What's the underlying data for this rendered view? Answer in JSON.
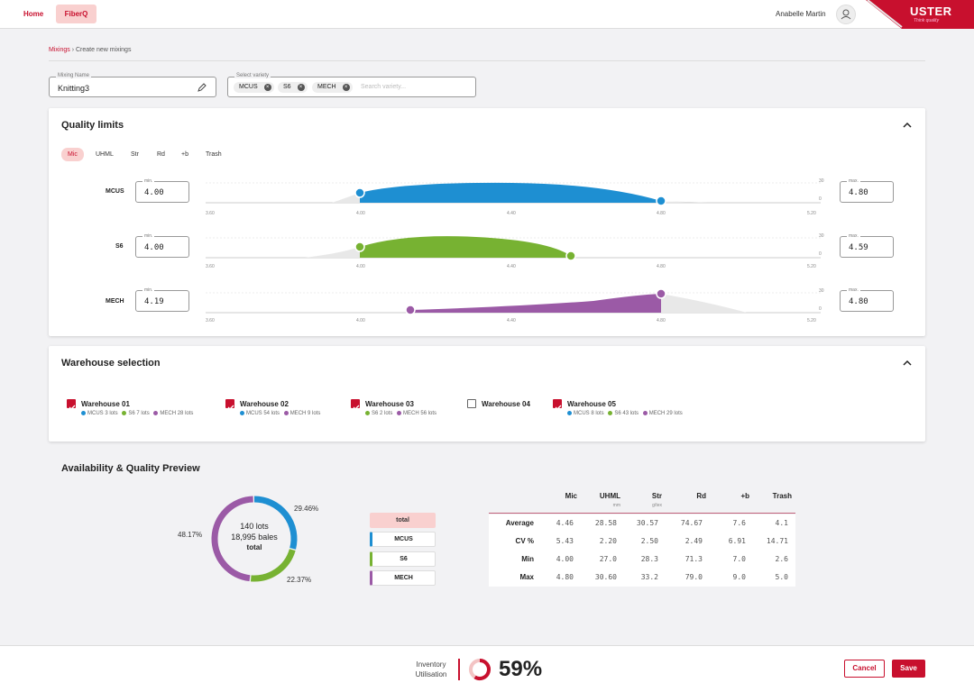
{
  "nav": {
    "home": "Home",
    "fiberq": "FiberQ",
    "user": "Anabelle Martin"
  },
  "brand": {
    "logo": "USTER",
    "tagline": "Think quality",
    "accent": "#c8102e"
  },
  "breadcrumb": {
    "parent": "Mixings",
    "separator": "›",
    "current": "Create new mixings"
  },
  "mixing_name": {
    "label": "Mixing Name",
    "value": "Knitting3"
  },
  "variety": {
    "label": "Select variety",
    "chips": [
      "MCUS",
      "S6",
      "MECH"
    ],
    "placeholder": "Search variety..."
  },
  "quality": {
    "title": "Quality limits",
    "tabs": [
      "Mic",
      "UHML",
      "Str",
      "Rd",
      "+b",
      "Trash"
    ],
    "active_tab": "Mic",
    "rows": [
      {
        "name": "MCUS",
        "min_label": "min.",
        "min": "4.00",
        "max_label": "max.",
        "max": "4.80",
        "ticks": [
          "3.60",
          "4.00",
          "4.40",
          "4.80",
          "5.20"
        ],
        "ymax": "30",
        "ymin": "0",
        "color": "#1e8fd2"
      },
      {
        "name": "S6",
        "min_label": "min.",
        "min": "4.00",
        "max_label": "max.",
        "max": "4.59",
        "ticks": [
          "3.60",
          "4.00",
          "4.40",
          "4.80",
          "5.20"
        ],
        "ymax": "30",
        "ymin": "0",
        "color": "#77b232"
      },
      {
        "name": "MECH",
        "min_label": "min.",
        "min": "4.19",
        "max_label": "max.",
        "max": "4.80",
        "ticks": [
          "3.60",
          "4.00",
          "4.40",
          "4.80",
          "5.20"
        ],
        "ymax": "30",
        "ymin": "0",
        "color": "#9b5aa6"
      }
    ]
  },
  "warehouse": {
    "title": "Warehouse selection",
    "items": [
      {
        "name": "Warehouse 01",
        "checked": true,
        "detail": [
          {
            "color": "#1e8fd2",
            "text": "MCUS 3 lots"
          },
          {
            "color": "#77b232",
            "text": "S6 7 lots"
          },
          {
            "color": "#9b5aa6",
            "text": "MECH 28 lots"
          }
        ]
      },
      {
        "name": "Warehouse 02",
        "checked": true,
        "detail": [
          {
            "color": "#1e8fd2",
            "text": "MCUS 54 lots"
          },
          {
            "color": "#9b5aa6",
            "text": "MECH 9 lots"
          }
        ]
      },
      {
        "name": "Warehouse 03",
        "checked": true,
        "detail": [
          {
            "color": "#77b232",
            "text": "S6 2 lots"
          },
          {
            "color": "#9b5aa6",
            "text": "MECH 56 lots"
          }
        ]
      },
      {
        "name": "Warehouse 04",
        "checked": false,
        "detail": []
      },
      {
        "name": "Warehouse 05",
        "checked": true,
        "detail": [
          {
            "color": "#1e8fd2",
            "text": "MCUS 8 lots"
          },
          {
            "color": "#77b232",
            "text": "S6 43 lots"
          },
          {
            "color": "#9b5aa6",
            "text": "MECH 29 lots"
          }
        ]
      }
    ]
  },
  "preview": {
    "title": "Availability & Quality Preview",
    "donut": {
      "lots": "140 lots",
      "bales": "18,995 bales",
      "label": "total",
      "slices": [
        {
          "pct": 29.46,
          "label": "29.46%",
          "color": "#1e8fd2"
        },
        {
          "pct": 22.37,
          "label": "22.37%",
          "color": "#77b232"
        },
        {
          "pct": 48.17,
          "label": "48.17%",
          "color": "#9b5aa6"
        }
      ]
    },
    "legend": [
      {
        "label": "total",
        "color": "#f9d0cf"
      },
      {
        "label": "MCUS",
        "color": "#1e8fd2"
      },
      {
        "label": "S6",
        "color": "#77b232"
      },
      {
        "label": "MECH",
        "color": "#9b5aa6"
      }
    ],
    "table": {
      "columns": [
        {
          "name": "Mic",
          "unit": ""
        },
        {
          "name": "UHML",
          "unit": "mm"
        },
        {
          "name": "Str",
          "unit": "g/tex"
        },
        {
          "name": "Rd",
          "unit": ""
        },
        {
          "name": "+b",
          "unit": ""
        },
        {
          "name": "Trash",
          "unit": ""
        }
      ],
      "rows": [
        {
          "label": "Average",
          "values": [
            "4.46",
            "28.58",
            "30.57",
            "74.67",
            "7.6",
            "4.1"
          ]
        },
        {
          "label": "CV %",
          "values": [
            "5.43",
            "2.20",
            "2.50",
            "2.49",
            "6.91",
            "14.71"
          ]
        },
        {
          "label": "Min",
          "values": [
            "4.00",
            "27.0",
            "28.3",
            "71.3",
            "7.0",
            "2.6"
          ]
        },
        {
          "label": "Max",
          "values": [
            "4.80",
            "30.60",
            "33.2",
            "79.0",
            "9.0",
            "5.0"
          ]
        }
      ]
    }
  },
  "footer": {
    "inventory_label": "Inventory Utilisation",
    "inventory_value": 59,
    "inventory_text": "59%",
    "cancel": "Cancel",
    "save": "Save"
  }
}
